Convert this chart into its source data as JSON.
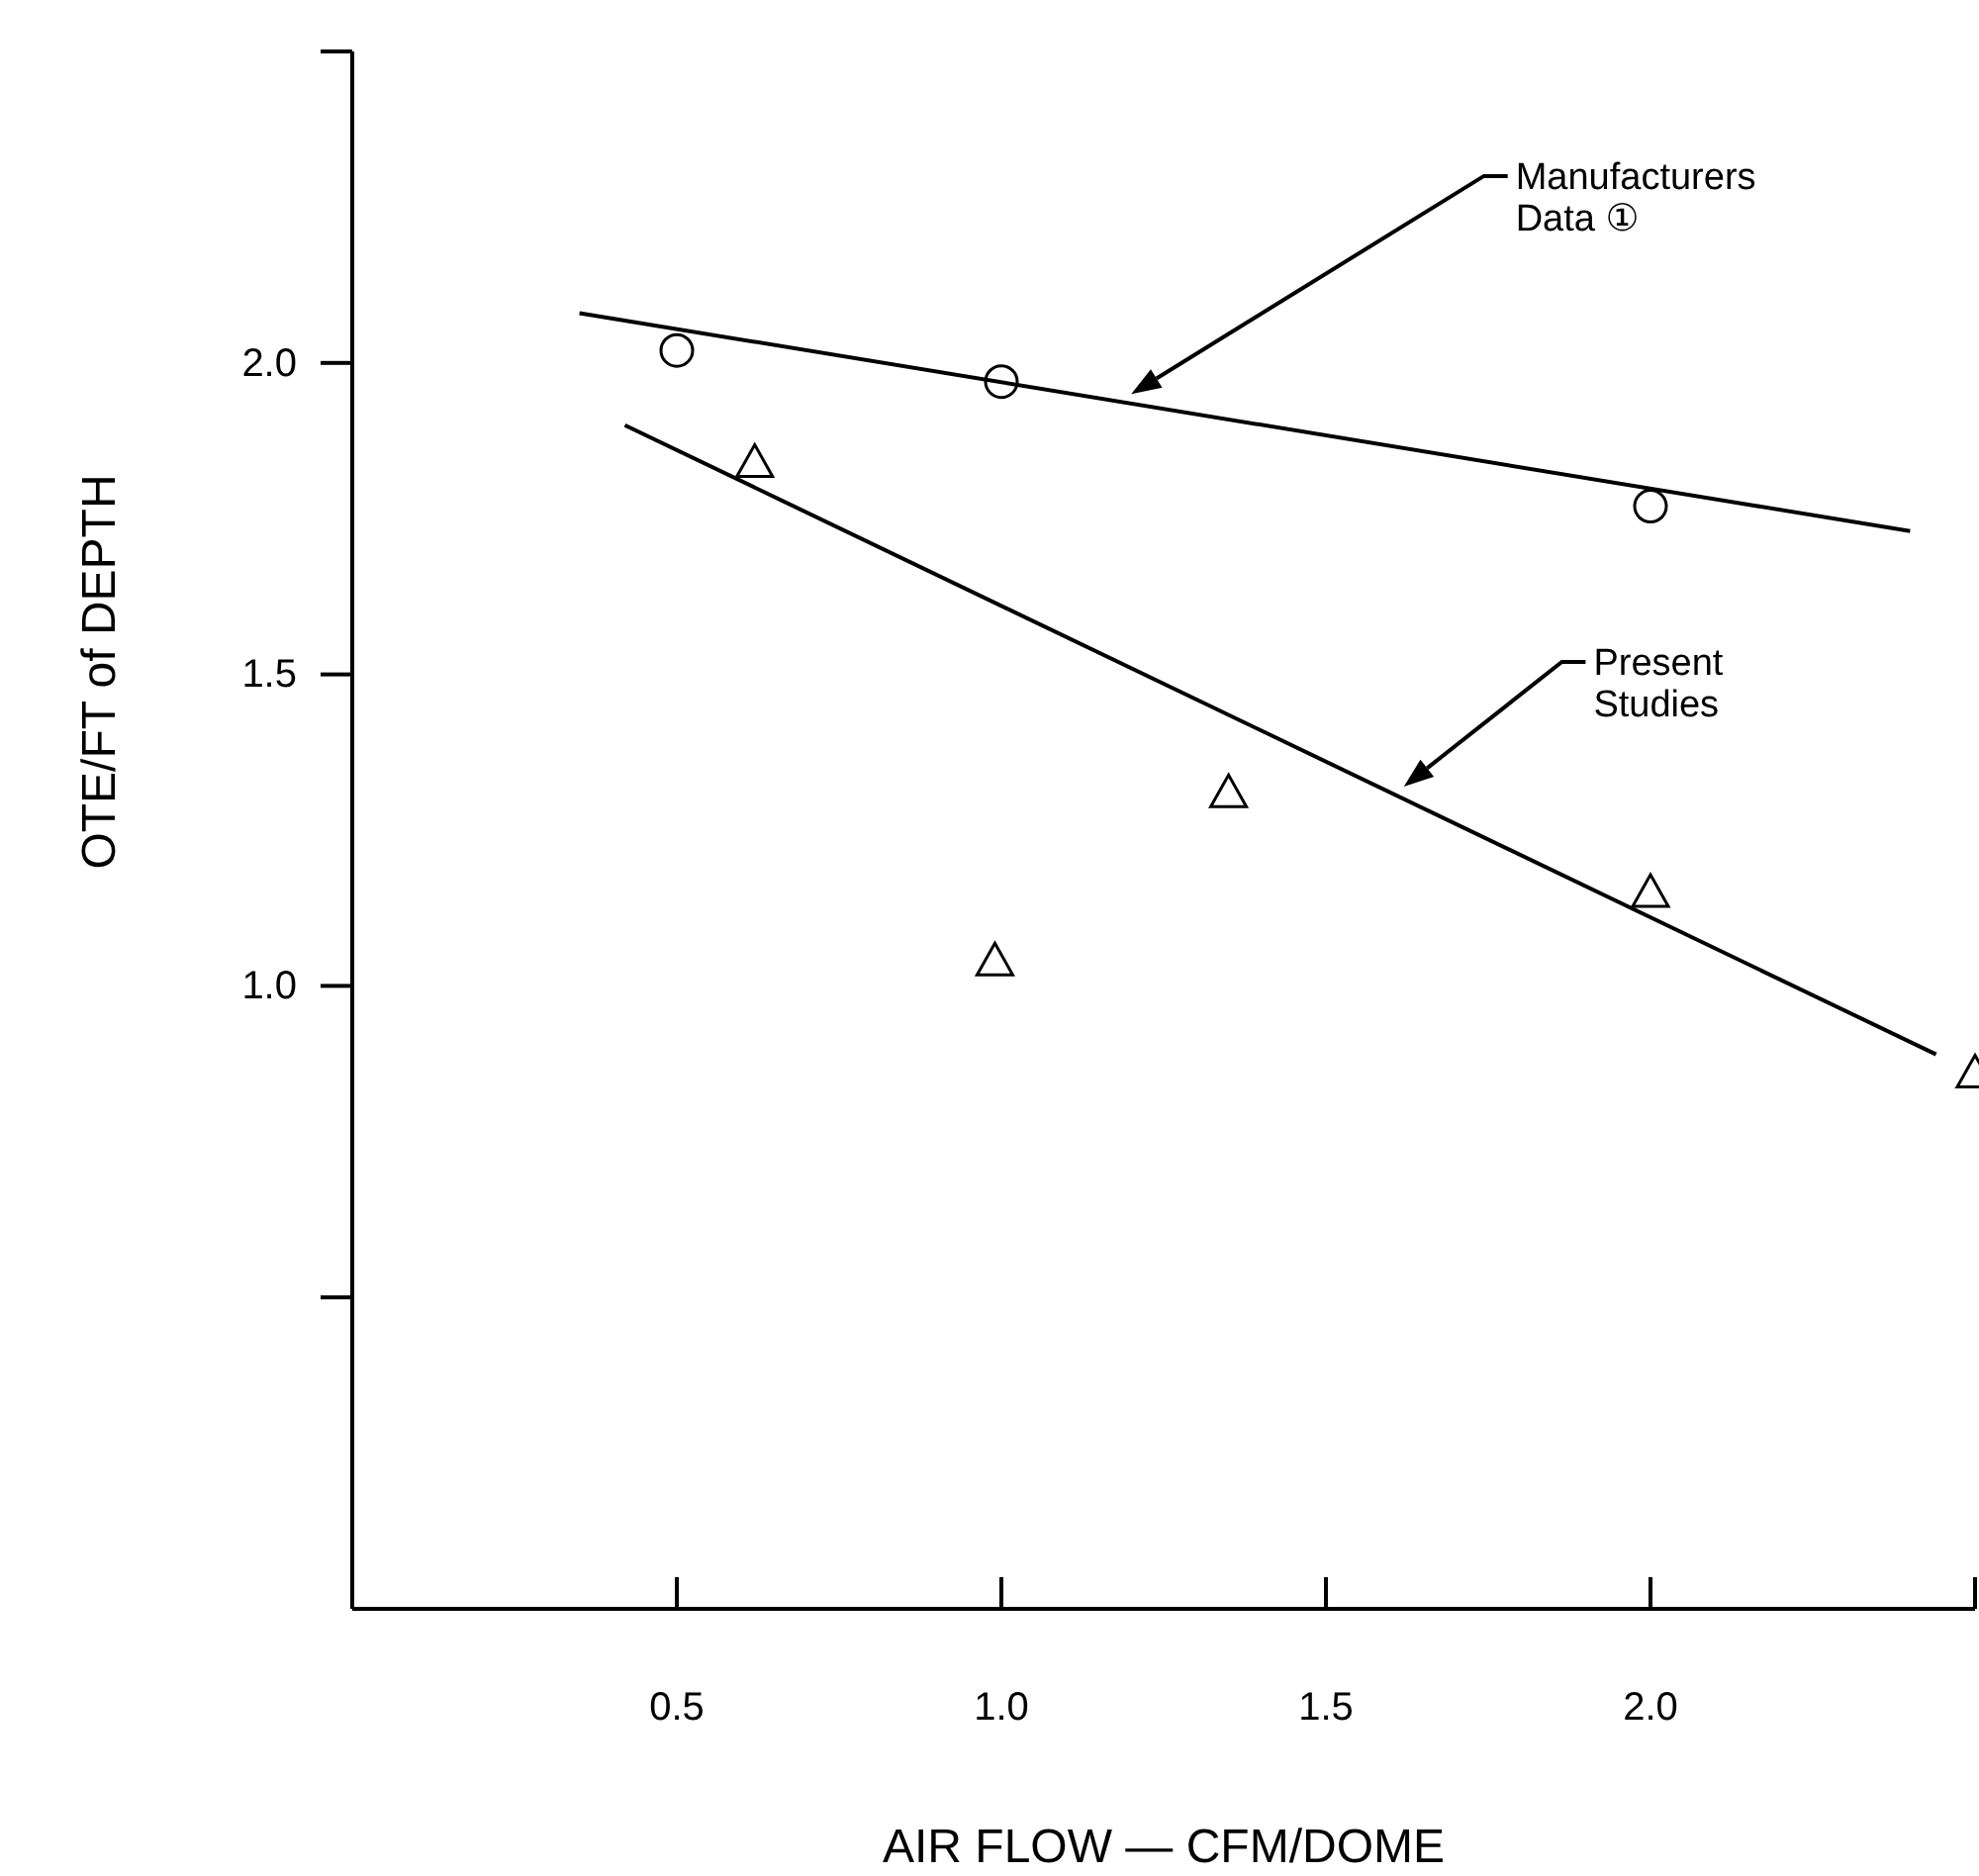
{
  "chart_data": {
    "type": "scatter",
    "xlabel": "AIR FLOW — CFM/DOME",
    "ylabel": "OTE/FT of DEPTH",
    "xlim": [
      0,
      2.5
    ],
    "ylim": [
      0,
      2.5
    ],
    "xticks": [
      {
        "value": 0.5,
        "label": "0.5"
      },
      {
        "value": 1.0,
        "label": "1.0"
      },
      {
        "value": 1.5,
        "label": "1.5"
      },
      {
        "value": 2.0,
        "label": "2.0"
      },
      {
        "value": 2.5,
        "label": null
      }
    ],
    "yticks": [
      {
        "value": 0.5,
        "label": null
      },
      {
        "value": 1.0,
        "label": "1.0"
      },
      {
        "value": 1.5,
        "label": "1.5"
      },
      {
        "value": 2.0,
        "label": "2.0"
      },
      {
        "value": 2.5,
        "label": null
      }
    ],
    "grid": false,
    "series": [
      {
        "marker": "circle",
        "color": "#000000",
        "x": [
          0.5,
          1.0,
          2.0
        ],
        "values": [
          2.02,
          1.97,
          1.77
        ]
      },
      {
        "marker": "triangle",
        "color": "#000000",
        "x": [
          0.62,
          0.99,
          1.35,
          2.0,
          2.5
        ],
        "values": [
          1.84,
          1.04,
          1.31,
          1.15,
          0.86
        ]
      },
      {
        "type": "line",
        "marker": "none",
        "color": "#000000",
        "x": [
          0.35,
          2.4
        ],
        "values": [
          2.08,
          1.73
        ]
      },
      {
        "type": "line",
        "marker": "none",
        "color": "#000000",
        "x": [
          0.42,
          2.44
        ],
        "values": [
          1.9,
          0.89
        ]
      }
    ],
    "annotations": [
      "Manufacturers\nData ①",
      "Present\nStudies"
    ]
  }
}
